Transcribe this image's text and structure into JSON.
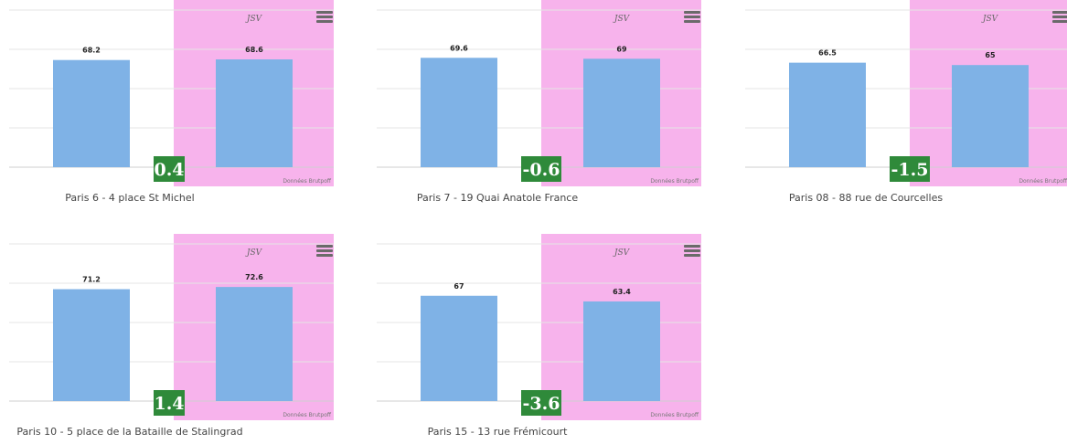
{
  "chart_data": [
    {
      "type": "bar",
      "title": "Paris 6 - 4 place St Michel",
      "categories": [
        "",
        "JSV"
      ],
      "values": [
        68.2,
        68.6
      ],
      "highlight_label": "JSV",
      "difference": "0.4",
      "source": "Données Brutpoff",
      "ylim": [
        0,
        100
      ],
      "grid": true
    },
    {
      "type": "bar",
      "title": "Paris 7 - 19 Quai Anatole France",
      "categories": [
        "",
        "JSV"
      ],
      "values": [
        69.6,
        69
      ],
      "highlight_label": "JSV",
      "difference": "-0.6",
      "source": "Données Brutpoff",
      "ylim": [
        0,
        100
      ],
      "grid": true
    },
    {
      "type": "bar",
      "title": "Paris 08 - 88 rue de Courcelles",
      "categories": [
        "",
        "JSV"
      ],
      "values": [
        66.5,
        65
      ],
      "highlight_label": "JSV",
      "difference": "-1.5",
      "source": "Données Brutpoff",
      "ylim": [
        0,
        100
      ],
      "grid": true
    },
    {
      "type": "bar",
      "title": "Paris 10 - 5 place de la Bataille de Stalingrad",
      "categories": [
        "",
        "JSV"
      ],
      "values": [
        71.2,
        72.6
      ],
      "highlight_label": "JSV",
      "difference": "1.4",
      "source": "Données Brutpoff",
      "ylim": [
        0,
        100
      ],
      "grid": true
    },
    {
      "type": "bar",
      "title": "Paris 15 - 13 rue Frémicourt",
      "categories": [
        "",
        "JSV"
      ],
      "values": [
        67,
        63.4
      ],
      "highlight_label": "JSV",
      "difference": "-3.6",
      "source": "Données Brutpoff",
      "ylim": [
        0,
        100
      ],
      "grid": true
    }
  ],
  "colors": {
    "bar": "#7fb2e6",
    "highlight_band": "#f7b3ec",
    "delta_badge": "#2f8a3a",
    "grid": "#e4e4e4"
  },
  "icons": {
    "menu": "hamburger-menu-icon"
  }
}
